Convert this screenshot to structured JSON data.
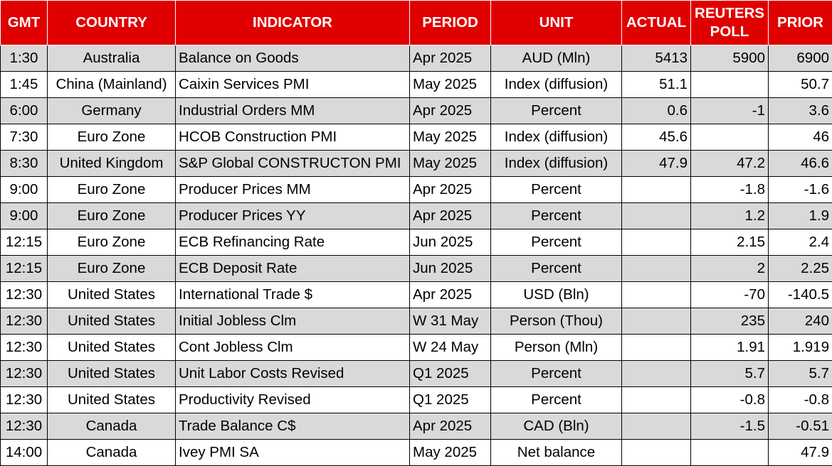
{
  "colors": {
    "header_bg": "#e10000",
    "header_text": "#ffffff",
    "shaded_row": "#d9d9d9"
  },
  "headers": {
    "gmt": "GMT",
    "country": "COUNTRY",
    "indicator": "INDICATOR",
    "period": "PERIOD",
    "unit": "UNIT",
    "actual": "ACTUAL",
    "poll_line1": "REUTERS",
    "poll_line2": "POLL",
    "prior": "PRIOR"
  },
  "rows": [
    {
      "gmt": "1:30",
      "country": "Australia",
      "indicator": "Balance on Goods",
      "period": "Apr 2025",
      "unit": "AUD (Mln)",
      "actual": "5413",
      "poll": "5900",
      "prior": "6900"
    },
    {
      "gmt": "1:45",
      "country": "China (Mainland)",
      "indicator": "Caixin Services PMI",
      "period": "May 2025",
      "unit": "Index (diffusion)",
      "actual": "51.1",
      "poll": "",
      "prior": "50.7"
    },
    {
      "gmt": "6:00",
      "country": "Germany",
      "indicator": "Industrial Orders MM",
      "period": "Apr 2025",
      "unit": "Percent",
      "actual": "0.6",
      "poll": "-1",
      "prior": "3.6"
    },
    {
      "gmt": "7:30",
      "country": "Euro Zone",
      "indicator": "HCOB Construction PMI",
      "period": "May 2025",
      "unit": "Index (diffusion)",
      "actual": "45.6",
      "poll": "",
      "prior": "46"
    },
    {
      "gmt": "8:30",
      "country": "United Kingdom",
      "indicator": "S&P Global CONSTRUCTON PMI",
      "period": "May 2025",
      "unit": "Index (diffusion)",
      "actual": "47.9",
      "poll": "47.2",
      "prior": "46.6"
    },
    {
      "gmt": "9:00",
      "country": "Euro Zone",
      "indicator": "Producer Prices MM",
      "period": "Apr 2025",
      "unit": "Percent",
      "actual": "",
      "poll": "-1.8",
      "prior": "-1.6"
    },
    {
      "gmt": "9:00",
      "country": "Euro Zone",
      "indicator": "Producer Prices YY",
      "period": "Apr 2025",
      "unit": "Percent",
      "actual": "",
      "poll": "1.2",
      "prior": "1.9"
    },
    {
      "gmt": "12:15",
      "country": "Euro Zone",
      "indicator": "ECB Refinancing Rate",
      "period": "Jun 2025",
      "unit": "Percent",
      "actual": "",
      "poll": "2.15",
      "prior": "2.4"
    },
    {
      "gmt": "12:15",
      "country": "Euro Zone",
      "indicator": "ECB Deposit Rate",
      "period": "Jun 2025",
      "unit": "Percent",
      "actual": "",
      "poll": "2",
      "prior": "2.25"
    },
    {
      "gmt": "12:30",
      "country": "United States",
      "indicator": "International Trade $",
      "period": "Apr 2025",
      "unit": "USD (Bln)",
      "actual": "",
      "poll": "-70",
      "prior": "-140.5"
    },
    {
      "gmt": "12:30",
      "country": "United States",
      "indicator": "Initial Jobless Clm",
      "period": "W 31 May",
      "unit": "Person (Thou)",
      "actual": "",
      "poll": "235",
      "prior": "240"
    },
    {
      "gmt": "12:30",
      "country": "United States",
      "indicator": "Cont Jobless Clm",
      "period": "W 24 May",
      "unit": "Person (Mln)",
      "actual": "",
      "poll": "1.91",
      "prior": "1.919"
    },
    {
      "gmt": "12:30",
      "country": "United States",
      "indicator": "Unit Labor Costs Revised",
      "period": "Q1 2025",
      "unit": "Percent",
      "actual": "",
      "poll": "5.7",
      "prior": "5.7"
    },
    {
      "gmt": "12:30",
      "country": "United States",
      "indicator": "Productivity Revised",
      "period": "Q1 2025",
      "unit": "Percent",
      "actual": "",
      "poll": "-0.8",
      "prior": "-0.8"
    },
    {
      "gmt": "12:30",
      "country": "Canada",
      "indicator": "Trade Balance C$",
      "period": "Apr 2025",
      "unit": "CAD (Bln)",
      "actual": "",
      "poll": "-1.5",
      "prior": "-0.51"
    },
    {
      "gmt": "14:00",
      "country": "Canada",
      "indicator": "Ivey PMI SA",
      "period": "May 2025",
      "unit": "Net balance",
      "actual": "",
      "poll": "",
      "prior": "47.9"
    }
  ]
}
